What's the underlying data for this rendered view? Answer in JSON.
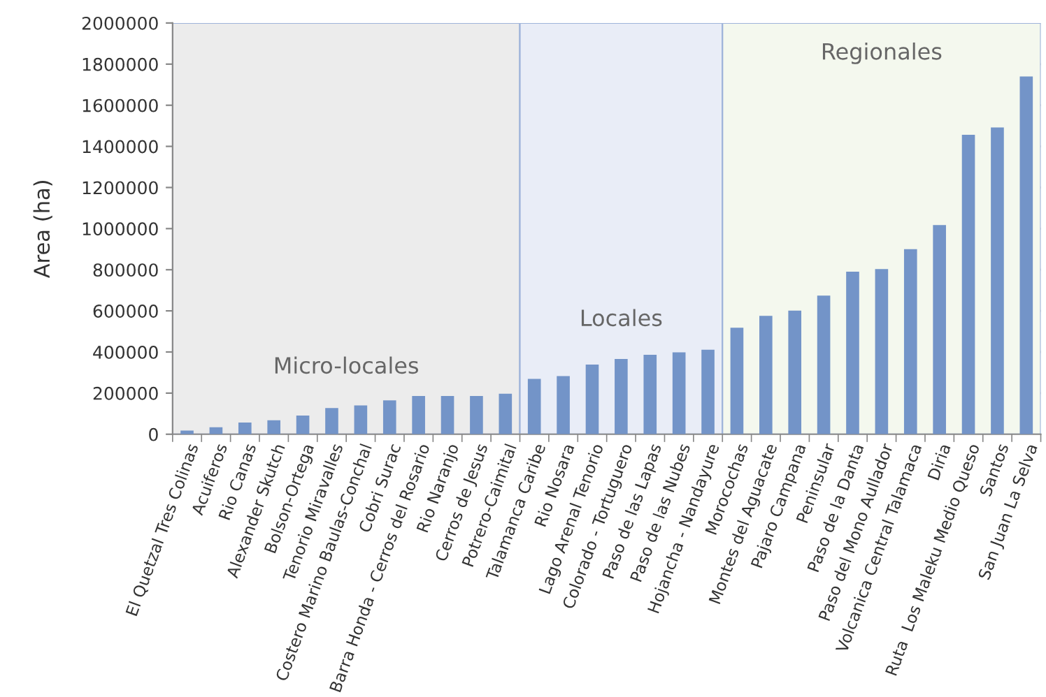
{
  "chart_data": {
    "type": "bar",
    "ylabel": "Area (ha)",
    "categories": [
      "El Quetzal Tres Colinas",
      "Acuiferos",
      "Rio Canas",
      "Alexander Skutch",
      "Bolson-Ortega",
      "Tenorio Miravalles",
      "Costero Marino Baulas-Conchal",
      "Cobri Surac",
      "Barra Honda - Cerros del Rosario",
      "Rio Naranjo",
      "Cerros de Jesus",
      "Potrero-Caimital",
      "Talamanca Caribe",
      "Rio Nosara",
      "Lago Arenal Tenorio",
      "Colorado - Tortuguero",
      "Paso de las Lapas",
      "Paso de las Nubes",
      "Hojancha - Nandayure",
      "Morocochas",
      "Montes del Aguacate",
      "Pajaro Campana",
      "Peninsular",
      "Paso de la Danta",
      "Paso del Mono Aullador",
      "Volcanica Central Talamaca",
      "Diria",
      "Ruta  Los Maleku Medio Queso",
      "Santos",
      "San Juan La Selva"
    ],
    "values": [
      18000,
      34000,
      57000,
      68000,
      91000,
      127000,
      140000,
      165000,
      186000,
      186000,
      186000,
      197000,
      269000,
      283000,
      339000,
      366000,
      386000,
      398000,
      411000,
      518000,
      576000,
      601000,
      674000,
      791000,
      803000,
      900000,
      1017000,
      1456000,
      1492000,
      1740000
    ],
    "color": "#7394c8",
    "ylim": [
      0,
      2000000
    ],
    "yticks": [
      0,
      200000,
      400000,
      600000,
      800000,
      1000000,
      1200000,
      1400000,
      1600000,
      1800000,
      2000000
    ],
    "grid": "y",
    "bands": [
      {
        "axis": "x",
        "from": "El Quetzal Tres Colinas",
        "to": "Potrero-Caimital",
        "label": "Micro-locales",
        "color": "#ececec"
      },
      {
        "axis": "x",
        "from": "Talamanca Caribe",
        "to": "Hojancha - Nandayure",
        "label": "Locales",
        "color": "#e9edf7"
      },
      {
        "axis": "x",
        "from": "Morocochas",
        "to": "San Juan La Selva",
        "label": "Regionales",
        "color": "#f4f8ee"
      }
    ]
  }
}
